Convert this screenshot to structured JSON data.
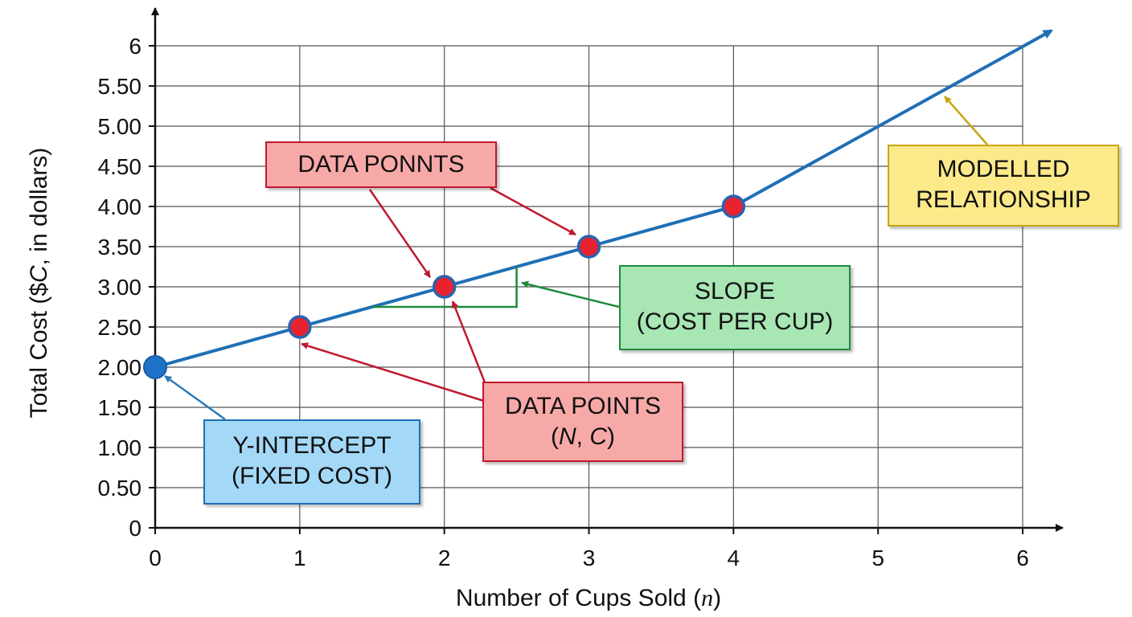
{
  "chart_data": {
    "type": "line",
    "xlabel": "Number of Cups Sold",
    "xlabel_var": "n",
    "ylabel_prefix": "Total Cost ($",
    "ylabel_var": "C",
    "ylabel_suffix": ", in dollars)",
    "xlim": [
      0,
      6
    ],
    "ylim": [
      0,
      6
    ],
    "x_ticks": [
      "0",
      "1",
      "2",
      "3",
      "4",
      "5",
      "6"
    ],
    "y_ticks": [
      {
        "value": 0,
        "label": "0"
      },
      {
        "value": 0.5,
        "label": "0.50"
      },
      {
        "value": 1,
        "label": "1.00"
      },
      {
        "value": 1.5,
        "label": "1.50"
      },
      {
        "value": 2,
        "label": "2.00"
      },
      {
        "value": 2.5,
        "label": "2.50"
      },
      {
        "value": 3,
        "label": "3.00"
      },
      {
        "value": 3.5,
        "label": "3.50"
      },
      {
        "value": 4,
        "label": "4.00"
      },
      {
        "value": 4.5,
        "label": "4.50"
      },
      {
        "value": 5,
        "label": "5.00"
      },
      {
        "value": 5.5,
        "label": "5.50"
      },
      {
        "value": 6,
        "label": "6"
      }
    ],
    "grid": true,
    "line": {
      "intercept": 2,
      "slope": 0.5,
      "x_end": 6.2
    },
    "intercept_point": {
      "x": 0,
      "y": 2
    },
    "data_points": [
      {
        "x": 1,
        "y": 2.5
      },
      {
        "x": 2,
        "y": 3
      },
      {
        "x": 3,
        "y": 3.5
      },
      {
        "x": 4,
        "y": 4
      }
    ],
    "slope_triangle": {
      "x0": 1.5,
      "x1": 2.5
    },
    "colors": {
      "line": "#1f6fb5",
      "point": "#e8222e",
      "point_outline": "#2a62b0",
      "intercept": "#1e72c8",
      "grid": "#555555",
      "axis": "#111111",
      "slope": "#1f8a3b",
      "data_arrow": "#c0192d",
      "intercept_arrow": "#2a7ab8",
      "model_arrow": "#c9a514"
    }
  },
  "annotations": {
    "data_ponnts": {
      "label": "DATA PONNTS",
      "bg": "#f7a9a8",
      "border": "#c0192d"
    },
    "data_points": {
      "line1": "DATA POINTS",
      "line2_open": "(",
      "line2_n": "N",
      "line2_sep": ", ",
      "line2_c": "C",
      "line2_close": ")",
      "bg": "#f7a9a8",
      "border": "#c0192d"
    },
    "slope": {
      "line1": "SLOPE",
      "line2": "(COST PER CUP)",
      "bg": "#a8e6b4",
      "border": "#1f8a3b"
    },
    "intercept": {
      "line1": "Y-INTERCEPT",
      "line2": "(FIXED COST)",
      "bg": "#a3d8f7",
      "border": "#1f6fb5"
    },
    "modelled": {
      "line1": "MODELLED",
      "line2": "RELATIONSHIP",
      "bg": "#fbe98a",
      "border": "#c9a514"
    }
  }
}
